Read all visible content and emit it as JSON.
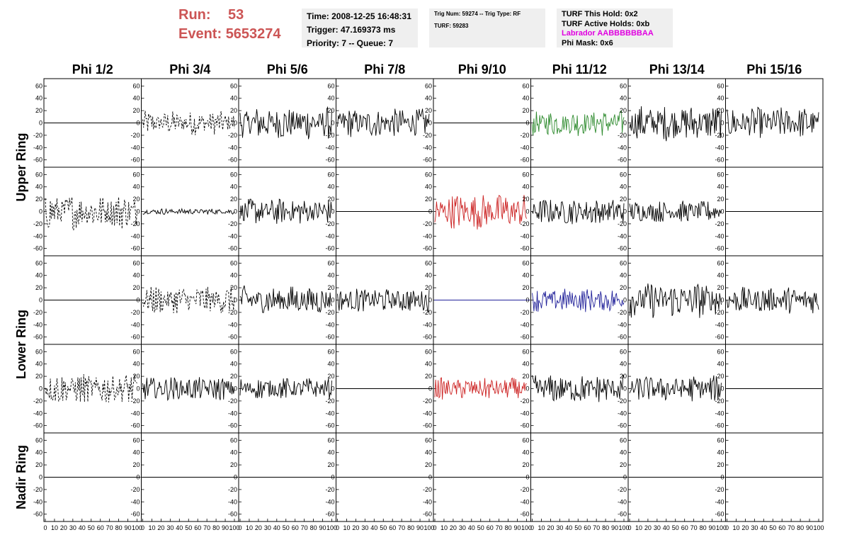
{
  "header": {
    "run_label": "Run:",
    "run_value": "53",
    "event_label": "Event:",
    "event_value": "5653274"
  },
  "info": {
    "time": "Time: 2008-12-25 16:48:31",
    "trigger": "Trigger: 47.169373 ms",
    "priority": "Priority: 7 -- Queue: 7"
  },
  "trig": {
    "line1": "Trig Num: 59274 -- Trig Type: RF",
    "line2": "TURF: 59283"
  },
  "turf": {
    "hold": "TURF This Hold: 0x2",
    "active": "TURF Active Holds: 0xb",
    "labrador": "Labrador AABBBBBBAA",
    "phimask": "Phi Mask: 0x6"
  },
  "colors": {
    "header_text": "#cc5555",
    "labrador": "#e000e0",
    "default_trace": "#000000",
    "green_trace": "#2e8b2e",
    "red_trace": "#cc2222",
    "blue_trace": "#22229a"
  },
  "chart_data": {
    "type": "line",
    "columns": [
      "Phi 1/2",
      "Phi 3/4",
      "Phi 5/6",
      "Phi 7/8",
      "Phi 9/10",
      "Phi 11/12",
      "Phi 13/14",
      "Phi 15/16"
    ],
    "rings": [
      "Upper Ring",
      "Lower Ring",
      "Nadir Ring"
    ],
    "y_ticks": [
      "60",
      "40",
      "20",
      "0",
      "-20",
      "-40",
      "-60"
    ],
    "x_ticks": [
      "0",
      "10",
      "20",
      "30",
      "40",
      "50",
      "60",
      "70",
      "80",
      "90",
      "100"
    ],
    "ylim": [
      -65,
      65
    ],
    "xlim": [
      0,
      100
    ],
    "grid": false,
    "rows": [
      [
        {
          "style": "flat",
          "color": "default_trace"
        },
        {
          "style": "dashed",
          "amp": 20,
          "color": "default_trace"
        },
        {
          "style": "noise",
          "amp": 28,
          "color": "default_trace"
        },
        {
          "style": "noise",
          "amp": 24,
          "color": "default_trace"
        },
        {
          "style": "flat",
          "color": "default_trace"
        },
        {
          "style": "noise",
          "amp": 22,
          "color": "green_trace"
        },
        {
          "style": "noise",
          "amp": 30,
          "color": "default_trace"
        },
        {
          "style": "noise",
          "amp": 26,
          "color": "default_trace"
        }
      ],
      [
        {
          "style": "dashed",
          "amp": 30,
          "color": "default_trace"
        },
        {
          "style": "noise",
          "amp": 5,
          "color": "default_trace"
        },
        {
          "style": "noise",
          "amp": 22,
          "color": "default_trace"
        },
        {
          "style": "flat",
          "color": "default_trace"
        },
        {
          "style": "noise",
          "amp": 30,
          "color": "red_trace"
        },
        {
          "style": "noise",
          "amp": 22,
          "color": "default_trace"
        },
        {
          "style": "noise",
          "amp": 18,
          "color": "default_trace"
        },
        {
          "style": "flat",
          "color": "default_trace"
        }
      ],
      [
        {
          "style": "flat",
          "color": "default_trace"
        },
        {
          "style": "dashed",
          "amp": 24,
          "color": "default_trace"
        },
        {
          "style": "noise",
          "amp": 24,
          "color": "default_trace"
        },
        {
          "style": "noise",
          "amp": 20,
          "color": "default_trace"
        },
        {
          "style": "flat",
          "color": "blue_trace"
        },
        {
          "style": "noise",
          "amp": 20,
          "color": "blue_trace"
        },
        {
          "style": "noise",
          "amp": 30,
          "color": "default_trace"
        },
        {
          "style": "noise",
          "amp": 22,
          "color": "default_trace"
        }
      ],
      [
        {
          "style": "dashed",
          "amp": 26,
          "color": "default_trace"
        },
        {
          "style": "noise",
          "amp": 20,
          "color": "default_trace"
        },
        {
          "style": "noise",
          "amp": 18,
          "color": "default_trace"
        },
        {
          "style": "flat",
          "color": "default_trace"
        },
        {
          "style": "noise",
          "amp": 18,
          "color": "red_trace"
        },
        {
          "style": "noise",
          "amp": 24,
          "color": "default_trace"
        },
        {
          "style": "noise",
          "amp": 22,
          "color": "default_trace"
        },
        {
          "style": "flat",
          "color": "default_trace"
        }
      ],
      [
        {
          "style": "flat",
          "color": "default_trace"
        },
        {
          "style": "flat",
          "color": "default_trace"
        },
        {
          "style": "flat",
          "color": "default_trace"
        },
        {
          "style": "flat",
          "color": "default_trace"
        },
        {
          "style": "flat",
          "color": "default_trace"
        },
        {
          "style": "flat",
          "color": "default_trace"
        },
        {
          "style": "flat",
          "color": "default_trace"
        },
        {
          "style": "flat",
          "color": "default_trace"
        }
      ]
    ]
  }
}
